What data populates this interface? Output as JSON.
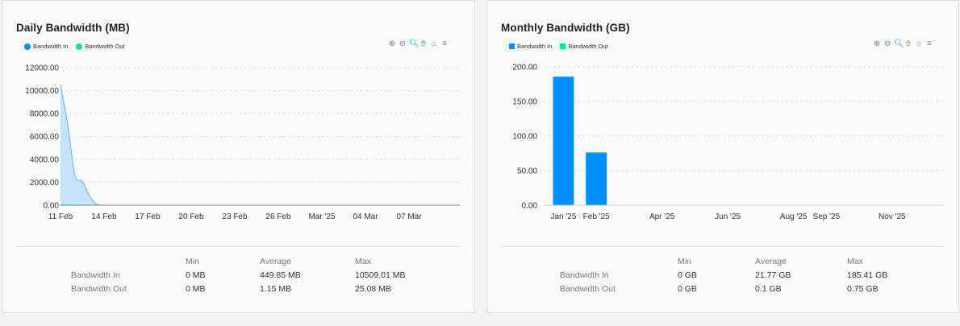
{
  "colors": {
    "bandwidth_in": "#008ffb",
    "bandwidth_out": "#00e396",
    "area_fill": "#b3dcfb",
    "grid": "#e0e0e0"
  },
  "toolbar_icons": [
    "zoom-in-icon",
    "zoom-out-icon",
    "zoom-icon",
    "pan-icon",
    "home-icon",
    "menu-icon"
  ],
  "daily": {
    "title": "Daily Bandwidth (MB)",
    "legend": [
      "Bandwidth In",
      "Bandwidth Out"
    ],
    "stats": {
      "headers": [
        "",
        "Min",
        "Average",
        "Max"
      ],
      "rows": [
        {
          "label": "Bandwidth In",
          "min": "0 MB",
          "avg": "449.85 MB",
          "max": "10509.01 MB"
        },
        {
          "label": "Bandwidth Out",
          "min": "0 MB",
          "avg": "1.15 MB",
          "max": "25.08 MB"
        }
      ]
    }
  },
  "monthly": {
    "title": "Monthly Bandwidth (GB)",
    "legend": [
      "Bandwidth In",
      "Bandwidth Out"
    ],
    "stats": {
      "headers": [
        "",
        "Min",
        "Average",
        "Max"
      ],
      "rows": [
        {
          "label": "Bandwidth In",
          "min": "0 GB",
          "avg": "21.77 GB",
          "max": "185.41 GB"
        },
        {
          "label": "Bandwidth Out",
          "min": "0 GB",
          "avg": "0.1 GB",
          "max": "0.75 GB"
        }
      ]
    }
  },
  "chart_data": [
    {
      "type": "area",
      "title": "Daily Bandwidth (MB)",
      "ylim": [
        0,
        12000
      ],
      "y_ticks": [
        "0.00",
        "2000.00",
        "4000.00",
        "6000.00",
        "8000.00",
        "10000.00",
        "12000.00"
      ],
      "x_ticks": [
        "11 Feb",
        "14 Feb",
        "17 Feb",
        "20 Feb",
        "23 Feb",
        "26 Feb",
        "Mar '25",
        "04 Mar",
        "07 Mar"
      ],
      "x_tick_days": [
        0,
        3,
        6,
        9,
        12,
        15,
        18,
        21,
        24
      ],
      "x_range_days": [
        0,
        27.5
      ],
      "legend_position": "top-left",
      "grid": true,
      "series": [
        {
          "name": "Bandwidth In",
          "x_days": [
            0,
            0.5,
            1,
            1.5,
            2,
            2.5,
            3,
            4,
            27.5
          ],
          "values": [
            10509,
            7000,
            2600,
            2100,
            800,
            60,
            0,
            0,
            0
          ]
        },
        {
          "name": "Bandwidth Out",
          "x_days": [
            0,
            1,
            2,
            3,
            27.5
          ],
          "values": [
            25,
            10,
            4,
            0,
            0
          ]
        }
      ]
    },
    {
      "type": "bar",
      "title": "Monthly Bandwidth (GB)",
      "stacked": true,
      "ylim": [
        0,
        200
      ],
      "y_ticks": [
        "0.00",
        "50.00",
        "100.00",
        "150.00",
        "200.00"
      ],
      "x_ticks": [
        "Jan '25",
        "Feb '25",
        "Apr '25",
        "Jun '25",
        "Aug '25",
        "Sep '25",
        "Nov '25"
      ],
      "x_tick_months": [
        0,
        1,
        3,
        5,
        7,
        8,
        10
      ],
      "x_range_months": [
        -0.6,
        11.6
      ],
      "legend_position": "top-left",
      "grid": true,
      "categories": [
        "Jan '25",
        "Feb '25"
      ],
      "category_months": [
        0,
        1
      ],
      "series": [
        {
          "name": "Bandwidth In",
          "values": [
            185.41,
            76
          ]
        },
        {
          "name": "Bandwidth Out",
          "values": [
            0.75,
            0.6
          ]
        }
      ]
    }
  ]
}
